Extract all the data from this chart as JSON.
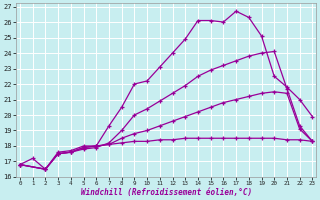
{
  "xlabel": "Windchill (Refroidissement éolien,°C)",
  "bg_color": "#c8eef0",
  "grid_color": "#ffffff",
  "line_color": "#990099",
  "x_ticks": [
    0,
    1,
    2,
    3,
    4,
    5,
    6,
    7,
    8,
    9,
    10,
    11,
    12,
    13,
    14,
    15,
    16,
    17,
    18,
    19,
    20,
    21,
    22,
    23
  ],
  "x_tick_labels": [
    "0",
    "1",
    "2",
    "3",
    "4",
    "5",
    "6",
    "7",
    "8",
    "9",
    "10",
    "11",
    "12",
    "13",
    "14",
    "15",
    "16",
    "17",
    "18",
    "19",
    "20",
    "21",
    "22",
    "23"
  ],
  "y_ticks": [
    16,
    17,
    18,
    19,
    20,
    21,
    22,
    23,
    24,
    25,
    26,
    27
  ],
  "xlim": [
    -0.3,
    23.3
  ],
  "ylim": [
    16,
    27.2
  ],
  "line1_x": [
    0,
    1,
    2,
    3,
    4,
    5,
    6,
    7,
    8,
    9,
    10,
    11,
    12,
    13,
    14,
    15,
    16,
    17,
    18,
    19,
    20,
    21,
    22,
    23
  ],
  "line1_y": [
    16.8,
    17.2,
    16.5,
    17.6,
    17.7,
    18.0,
    18.0,
    19.3,
    20.5,
    22.0,
    22.2,
    23.1,
    24.0,
    24.9,
    26.1,
    26.1,
    26.0,
    26.7,
    26.3,
    25.1,
    22.5,
    21.8,
    21.0,
    19.9
  ],
  "line2_x": [
    0,
    2,
    3,
    4,
    5,
    6,
    7,
    8,
    9,
    10,
    11,
    12,
    13,
    14,
    15,
    16,
    17,
    18,
    19,
    20,
    21,
    22,
    23
  ],
  "line2_y": [
    16.8,
    16.5,
    17.5,
    17.6,
    17.8,
    17.9,
    18.2,
    19.0,
    20.0,
    20.4,
    20.9,
    21.4,
    21.9,
    22.5,
    22.9,
    23.2,
    23.5,
    23.8,
    24.0,
    24.1,
    21.7,
    19.3,
    18.3
  ],
  "line3_x": [
    0,
    2,
    3,
    4,
    5,
    6,
    7,
    8,
    9,
    10,
    11,
    12,
    13,
    14,
    15,
    16,
    17,
    18,
    19,
    20,
    21,
    22,
    23
  ],
  "line3_y": [
    16.8,
    16.5,
    17.5,
    17.6,
    17.9,
    18.0,
    18.1,
    18.5,
    18.8,
    19.0,
    19.3,
    19.6,
    19.9,
    20.2,
    20.5,
    20.8,
    21.0,
    21.2,
    21.4,
    21.5,
    21.4,
    19.1,
    18.3
  ],
  "line4_x": [
    0,
    2,
    3,
    4,
    5,
    6,
    7,
    8,
    9,
    10,
    11,
    12,
    13,
    14,
    15,
    16,
    17,
    18,
    19,
    20,
    21,
    22,
    23
  ],
  "line4_y": [
    16.8,
    16.5,
    17.5,
    17.6,
    17.9,
    18.0,
    18.1,
    18.2,
    18.3,
    18.3,
    18.4,
    18.4,
    18.5,
    18.5,
    18.5,
    18.5,
    18.5,
    18.5,
    18.5,
    18.5,
    18.4,
    18.4,
    18.3
  ]
}
